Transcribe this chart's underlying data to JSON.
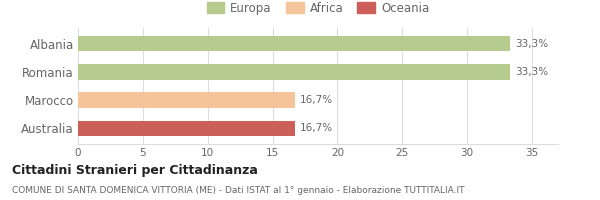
{
  "categories": [
    "Albania",
    "Romania",
    "Marocco",
    "Australia"
  ],
  "values": [
    33.3,
    33.3,
    16.7,
    16.7
  ],
  "bar_colors": [
    "#b5cc8e",
    "#b5cc8e",
    "#f5c49a",
    "#cc5f5a"
  ],
  "labels": [
    "33,3%",
    "33,3%",
    "16,7%",
    "16,7%"
  ],
  "xlim": [
    0,
    37
  ],
  "xticks": [
    0,
    5,
    10,
    15,
    20,
    25,
    30,
    35
  ],
  "legend_items": [
    {
      "label": "Europa",
      "color": "#b5cc8e"
    },
    {
      "label": "Africa",
      "color": "#f5c49a"
    },
    {
      "label": "Oceania",
      "color": "#cc5f5a"
    }
  ],
  "title": "Cittadini Stranieri per Cittadinanza",
  "subtitle": "COMUNE DI SANTA DOMENICA VITTORIA (ME) - Dati ISTAT al 1° gennaio - Elaborazione TUTTITALIA.IT",
  "background_color": "#ffffff",
  "bar_height": 0.55,
  "grid_color": "#dddddd",
  "axis_label_color": "#666666",
  "value_label_color": "#666666"
}
